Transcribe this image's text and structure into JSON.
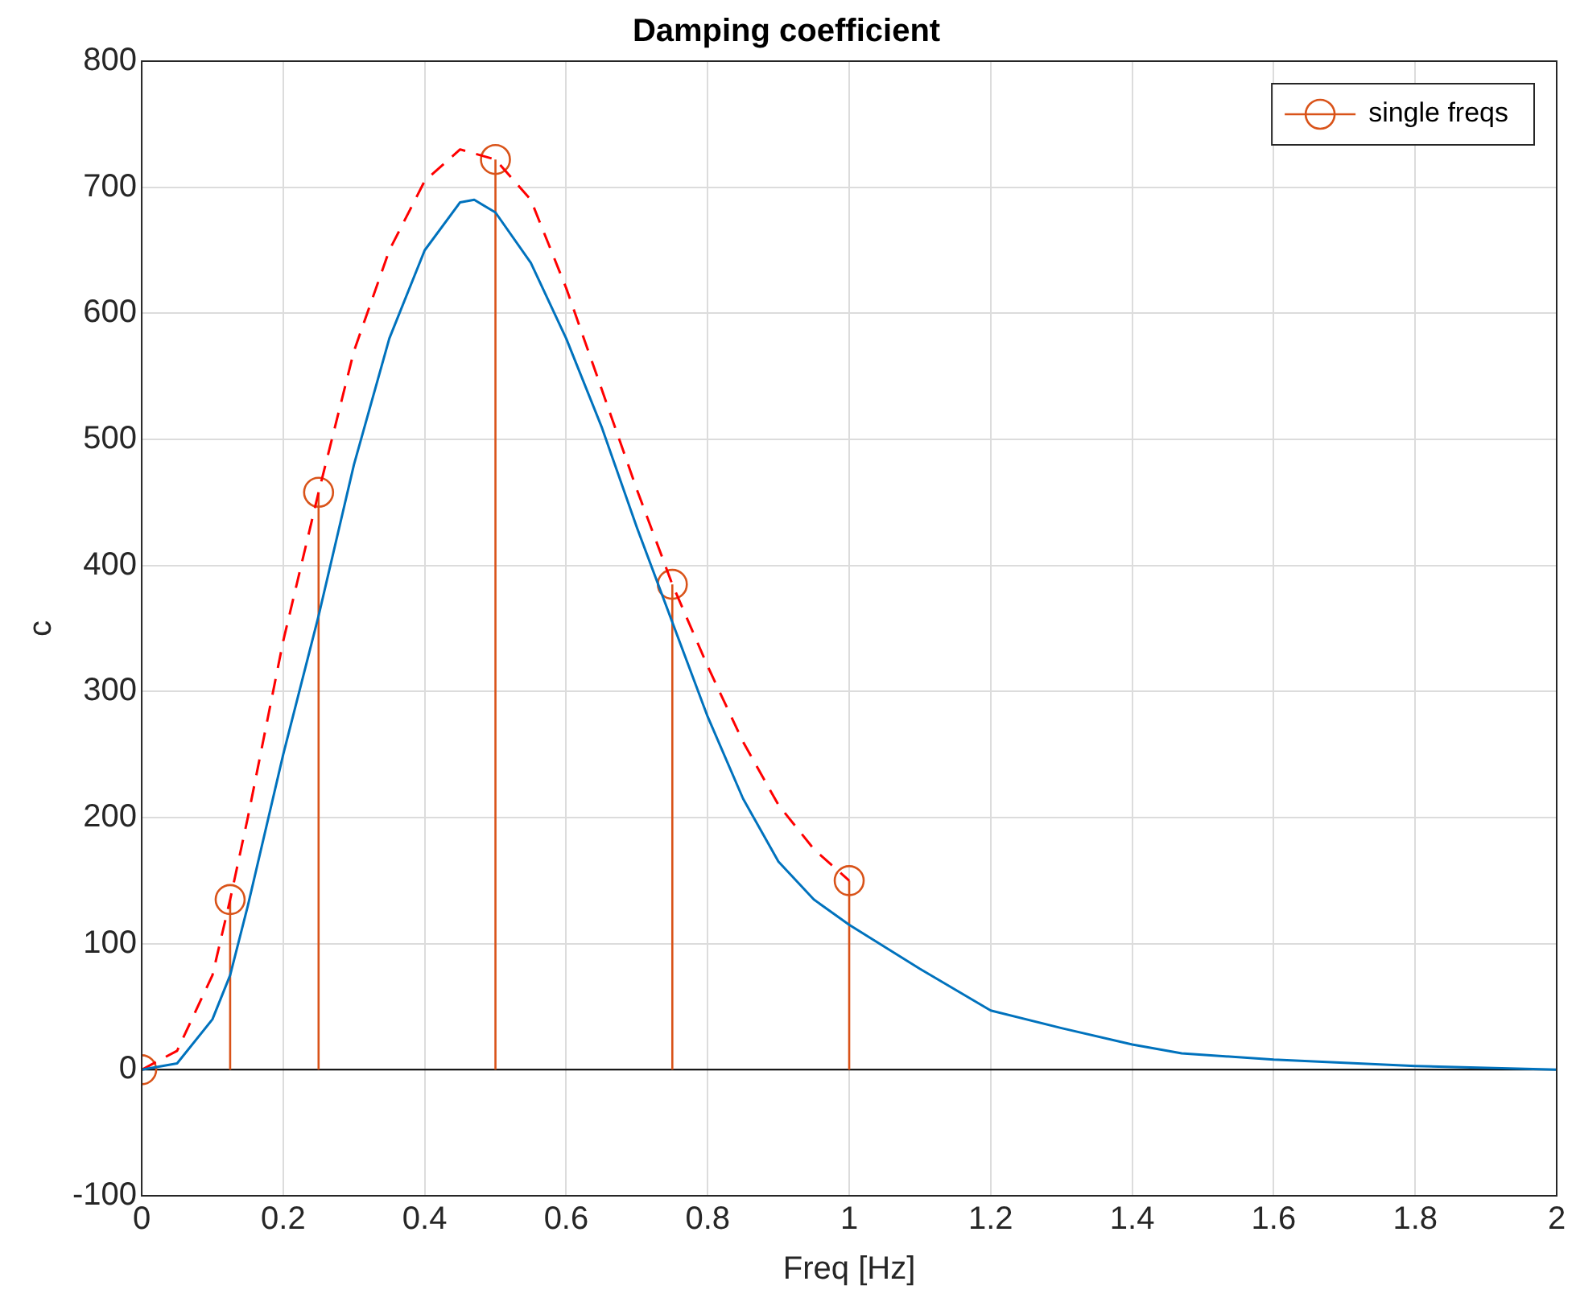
{
  "chart_data": {
    "type": "line",
    "title": "Damping coefficient",
    "xlabel": "Freq [Hz]",
    "ylabel": "c",
    "xlim": [
      0,
      2
    ],
    "xticks": [
      0,
      0.2,
      0.4,
      0.6,
      0.8,
      1,
      1.2,
      1.4,
      1.6,
      1.8,
      2
    ],
    "ylim": [
      -100,
      800
    ],
    "yticks": [
      -100,
      0,
      100,
      200,
      300,
      400,
      500,
      600,
      700,
      800
    ],
    "grid": true,
    "legend": "top right",
    "series": [
      {
        "color": "#0072bd",
        "marker": "none",
        "line_style": "solid",
        "x": [
          0,
          0.05,
          0.1,
          0.125,
          0.15,
          0.2,
          0.25,
          0.3,
          0.35,
          0.4,
          0.45,
          0.47,
          0.5,
          0.55,
          0.6,
          0.65,
          0.7,
          0.75,
          0.8,
          0.85,
          0.9,
          0.95,
          1,
          1.1,
          1.2,
          1.3,
          1.4,
          1.47,
          1.6,
          1.8,
          2
        ],
        "values": [
          0,
          5,
          40,
          75,
          130,
          250,
          360,
          480,
          580,
          650,
          688,
          690,
          680,
          640,
          580,
          510,
          430,
          355,
          280,
          215,
          165,
          135,
          115,
          80,
          47,
          33,
          20,
          13,
          8,
          3,
          0
        ]
      },
      {
        "color": "#ff0000",
        "marker": "none",
        "line_style": "dashed",
        "x": [
          0,
          0.05,
          0.1,
          0.125,
          0.15,
          0.2,
          0.25,
          0.3,
          0.35,
          0.4,
          0.45,
          0.5,
          0.55,
          0.6,
          0.65,
          0.7,
          0.75,
          0.8,
          0.85,
          0.9,
          0.95,
          1
        ],
        "values": [
          0,
          15,
          75,
          135,
          200,
          340,
          458,
          570,
          650,
          705,
          730,
          722,
          690,
          620,
          540,
          460,
          385,
          320,
          260,
          210,
          175,
          150
        ]
      },
      {
        "type": "lollipop",
        "name": "single freqs",
        "color": "#d95319",
        "marker": "circle",
        "x": [
          0,
          0.125,
          0.25,
          0.5,
          0.75,
          1
        ],
        "values": [
          0,
          135,
          458,
          722,
          385,
          150
        ]
      }
    ]
  }
}
